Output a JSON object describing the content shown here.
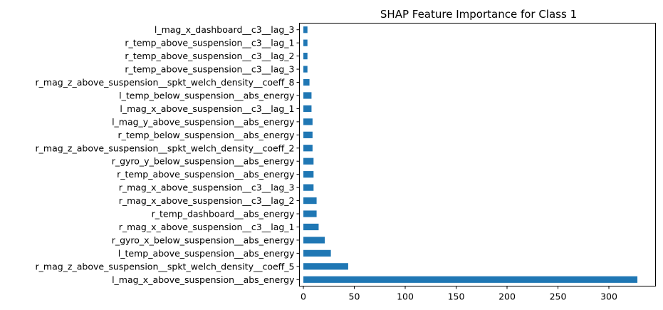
{
  "chart_data": {
    "type": "bar",
    "orientation": "horizontal",
    "title": "SHAP Feature Importance for Class 1",
    "xlabel": "",
    "ylabel": "",
    "xlim": [
      0,
      345
    ],
    "xticks": [
      "0",
      "50",
      "100",
      "150",
      "200",
      "250",
      "300"
    ],
    "bar_color": "#1f77b4",
    "grid": false,
    "categories": [
      "l_mag_x_dashboard__c3__lag_3",
      "r_temp_above_suspension__c3__lag_1",
      "r_temp_above_suspension__c3__lag_2",
      "r_temp_above_suspension__c3__lag_3",
      "r_mag_z_above_suspension__spkt_welch_density__coeff_8",
      "l_temp_below_suspension__abs_energy",
      "l_mag_x_above_suspension__c3__lag_1",
      "l_mag_y_above_suspension__abs_energy",
      "r_temp_below_suspension__abs_energy",
      "r_mag_z_above_suspension__spkt_welch_density__coeff_2",
      "r_gyro_y_below_suspension__abs_energy",
      "r_temp_above_suspension__abs_energy",
      "r_mag_x_above_suspension__c3__lag_3",
      "r_mag_x_above_suspension__c3__lag_2",
      "r_temp_dashboard__abs_energy",
      "r_mag_x_above_suspension__c3__lag_1",
      "r_gyro_x_below_suspension__abs_energy",
      "l_temp_above_suspension__abs_energy",
      "r_mag_z_above_suspension__spkt_welch_density__coeff_5",
      "l_mag_x_above_suspension__abs_energy"
    ],
    "values": [
      4,
      4,
      4,
      4,
      6,
      8,
      8,
      9,
      9,
      9,
      10,
      10,
      10,
      13,
      13,
      15,
      21,
      27,
      44,
      328
    ]
  }
}
